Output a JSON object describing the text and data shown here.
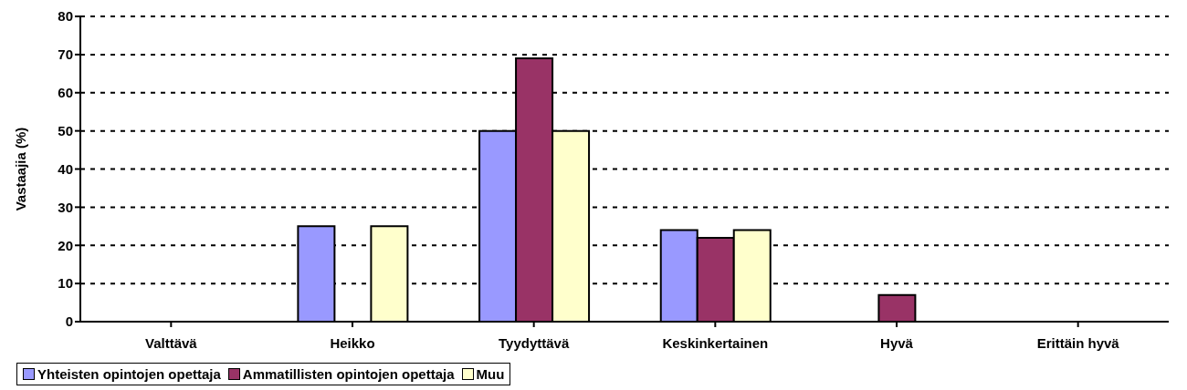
{
  "chart_data": {
    "type": "bar",
    "ylabel": "Vastaajia (%)",
    "categories": [
      "Valttävä",
      "Heikko",
      "Tyydyttävä",
      "Keskinkertainen",
      "Hyvä",
      "Erittäin hyvä"
    ],
    "series": [
      {
        "name": "Yhteisten opintojen opettaja",
        "color": "#9999ff",
        "values": [
          0,
          25,
          50,
          24,
          0,
          0
        ]
      },
      {
        "name": "Ammatillisten opintojen opettaja",
        "color": "#993366",
        "values": [
          0,
          0,
          69,
          22,
          7,
          0
        ]
      },
      {
        "name": "Muu",
        "color": "#ffffcc",
        "values": [
          0,
          25,
          50,
          24,
          0,
          0
        ]
      }
    ],
    "ylim": [
      0,
      80
    ],
    "yticks": [
      0,
      10,
      20,
      30,
      40,
      50,
      60,
      70,
      80
    ],
    "grid": "y",
    "legend": "bottom"
  }
}
